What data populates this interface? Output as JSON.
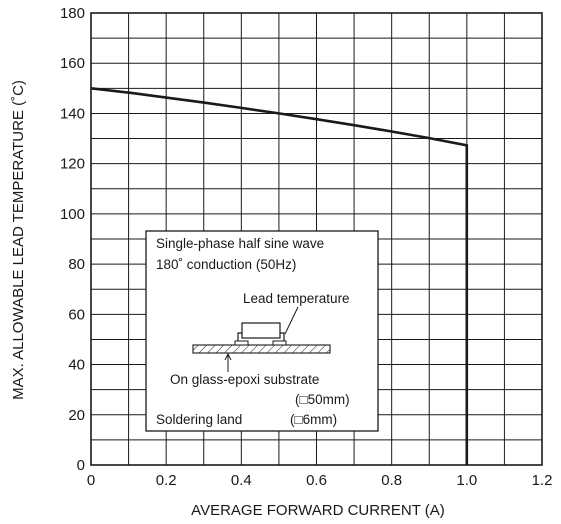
{
  "chart_data": {
    "type": "line",
    "xlabel": "AVERAGE FORWARD CURRENT (A)",
    "ylabel": "MAX. ALLOWABLE LEAD TEMPERATURE (˚C)",
    "xlim": [
      0,
      1.2
    ],
    "ylim": [
      0,
      180
    ],
    "x_ticks": [
      "0",
      "0.2",
      "0.4",
      "0.6",
      "0.8",
      "1.0",
      "1.2"
    ],
    "y_ticks": [
      "0",
      "20",
      "40",
      "60",
      "80",
      "100",
      "120",
      "140",
      "160",
      "180"
    ],
    "grid": true,
    "x": [
      0,
      0.1,
      0.2,
      0.3,
      0.4,
      0.5,
      0.6,
      0.7,
      0.8,
      0.9,
      1.0,
      1.0
    ],
    "y": [
      150,
      148.3,
      146.3,
      144.3,
      142.2,
      140.0,
      137.7,
      135.3,
      132.8,
      130.2,
      127.3,
      0
    ],
    "annotations": {
      "condition_line1": "Single-phase half sine wave",
      "condition_line2": "180˚ conduction (50Hz)",
      "lead_label": "Lead temperature",
      "substrate_label": "On glass-epoxi substrate",
      "substrate_size": "(□50mm)",
      "land_label": "Soldering land",
      "land_size": "(□6mm)"
    }
  }
}
